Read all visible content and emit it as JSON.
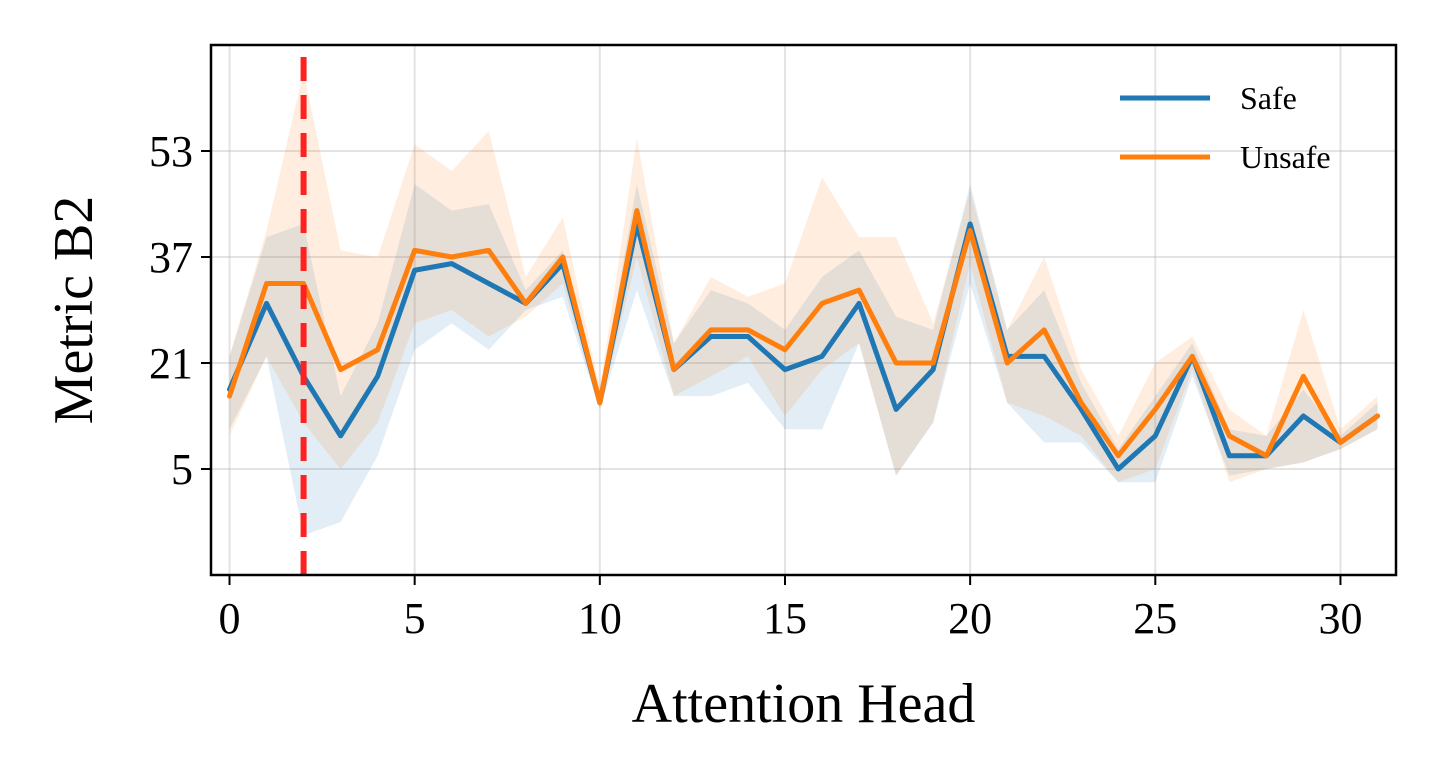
{
  "chart_data": {
    "type": "line",
    "xlabel": "Attention Head",
    "ylabel": "Metric B2",
    "xlim": [
      -0.5,
      31.5
    ],
    "ylim": [
      -11,
      69
    ],
    "xticks": [
      0,
      5,
      10,
      15,
      20,
      25,
      30
    ],
    "yticks": [
      5,
      21,
      37,
      53
    ],
    "grid": true,
    "legend": "top-right",
    "vline": {
      "x": 2,
      "color": "#ff2020",
      "style": "dashed"
    },
    "x": [
      0,
      1,
      2,
      3,
      4,
      5,
      6,
      7,
      8,
      9,
      10,
      11,
      12,
      13,
      14,
      15,
      16,
      17,
      18,
      19,
      20,
      21,
      22,
      23,
      24,
      25,
      26,
      27,
      28,
      29,
      30,
      31
    ],
    "series": [
      {
        "name": "Safe",
        "color": "#1f77b4",
        "values": [
          17,
          30,
          19,
          10,
          19,
          35,
          36,
          33,
          30,
          36,
          15,
          42,
          20,
          25,
          25,
          20,
          22,
          30,
          14,
          20,
          42,
          22,
          22,
          14,
          5,
          10,
          22,
          7,
          7,
          13,
          9,
          13
        ],
        "lower": [
          11,
          22,
          -5,
          -3,
          7,
          23,
          27,
          23,
          29,
          31,
          14,
          32,
          16,
          16,
          18,
          11,
          11,
          24,
          4,
          12,
          33,
          15,
          9,
          9,
          3,
          3,
          19,
          4,
          5,
          6,
          8,
          11
        ],
        "upper": [
          22,
          40,
          42,
          16,
          27,
          48,
          44,
          45,
          32,
          38,
          16,
          48,
          24,
          32,
          30,
          26,
          34,
          38,
          28,
          26,
          48,
          26,
          32,
          18,
          8,
          16,
          24,
          11,
          10,
          17,
          10,
          15
        ]
      },
      {
        "name": "Unsafe",
        "color": "#ff7f0e",
        "values": [
          16,
          33,
          33,
          20,
          23,
          38,
          37,
          38,
          30,
          37,
          15,
          44,
          20,
          26,
          26,
          23,
          30,
          32,
          21,
          21,
          41,
          21,
          26,
          15,
          7,
          14,
          22,
          10,
          7,
          19,
          9,
          13
        ],
        "lower": [
          10,
          22,
          12,
          5,
          12,
          27,
          29,
          25,
          28,
          33,
          14,
          37,
          16,
          19,
          22,
          13,
          20,
          24,
          4,
          12,
          36,
          15,
          13,
          10,
          3,
          5,
          20,
          3,
          5,
          6,
          8,
          11
        ],
        "upper": [
          22,
          41,
          65,
          38,
          37,
          54,
          50,
          56,
          34,
          43,
          17,
          55,
          24,
          34,
          31,
          33,
          49,
          40,
          40,
          27,
          47,
          26,
          37,
          20,
          10,
          21,
          25,
          14,
          10,
          29,
          11,
          16
        ]
      }
    ]
  }
}
